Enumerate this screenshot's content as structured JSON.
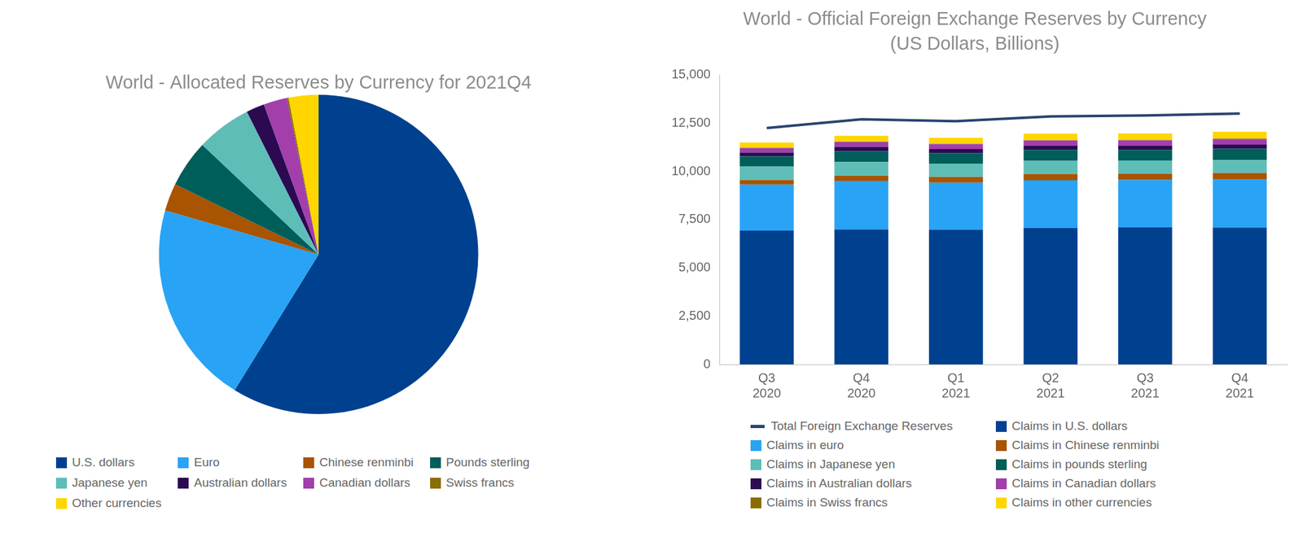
{
  "chart_data": [
    {
      "type": "pie",
      "title": "World - Allocated Reserves by Currency for 2021Q4",
      "categories": [
        "U.S. dollars",
        "Euro",
        "Chinese renminbi",
        "Pounds sterling",
        "Japanese yen",
        "Australian dollars",
        "Canadian dollars",
        "Swiss francs",
        "Other currencies"
      ],
      "values": [
        58.81,
        20.64,
        2.79,
        4.78,
        5.57,
        1.84,
        2.38,
        0.17,
        3.02
      ],
      "colors": [
        "#00418f",
        "#29a3f5",
        "#a85400",
        "#005e5a",
        "#5fbdb7",
        "#2b0a52",
        "#a23fab",
        "#8a6d00",
        "#ffd600"
      ],
      "legend": "bottom"
    },
    {
      "type": "bar",
      "title": "World - Official Foreign Exchange Reserves by Currency",
      "subtitle": "(US Dollars, Billions)",
      "categories": [
        "Q3 2020",
        "Q4 2020",
        "Q1 2021",
        "Q2 2021",
        "Q3 2021",
        "Q4 2021"
      ],
      "stacked": true,
      "grid": false,
      "legend": "bottom",
      "ylim": [
        0,
        15000
      ],
      "yticks": [
        0,
        {
          "value": 2500,
          "label": "2,500"
        },
        {
          "value": 5000,
          "label": "5,000"
        },
        {
          "value": 7500,
          "label": "7,500"
        },
        {
          "value": 10000,
          "label": "10,000"
        },
        {
          "value": 12500,
          "label": "12,500"
        },
        {
          "value": 15000,
          "label": "15,000"
        }
      ],
      "series": [
        {
          "name": "Total Foreign Exchange Reserves",
          "type": "line",
          "line_style": "solid",
          "color": "#2a4470",
          "values": [
            12250,
            12700,
            12600,
            12850,
            12900,
            13000
          ]
        },
        {
          "name": "Claims in U.S. dollars",
          "type": "bar",
          "color": "#00418f",
          "values": [
            6930,
            6990,
            6980,
            7070,
            7100,
            7090
          ]
        },
        {
          "name": "Claims in euro",
          "type": "bar",
          "color": "#29a3f5",
          "values": [
            2390,
            2520,
            2440,
            2470,
            2460,
            2490
          ]
        },
        {
          "name": "Claims in Chinese renminbi",
          "type": "bar",
          "color": "#a85400",
          "values": [
            240,
            270,
            290,
            320,
            310,
            340
          ]
        },
        {
          "name": "Claims in Japanese yen",
          "type": "bar",
          "color": "#5fbdb7",
          "values": [
            690,
            710,
            680,
            690,
            690,
            670
          ]
        },
        {
          "name": "Claims in pounds sterling",
          "type": "bar",
          "color": "#005e5a",
          "values": [
            530,
            560,
            560,
            570,
            560,
            580
          ]
        },
        {
          "name": "Claims in Australian dollars",
          "type": "bar",
          "color": "#2b0a52",
          "values": [
            200,
            220,
            210,
            220,
            220,
            220
          ]
        },
        {
          "name": "Claims in Canadian dollars",
          "type": "bar",
          "color": "#a23fab",
          "values": [
            230,
            250,
            250,
            260,
            270,
            290
          ]
        },
        {
          "name": "Claims in Swiss francs",
          "type": "bar",
          "color": "#8a6d00",
          "values": [
            20,
            20,
            20,
            20,
            20,
            20
          ]
        },
        {
          "name": "Claims in other currencies",
          "type": "bar",
          "color": "#ffd600",
          "values": [
            270,
            300,
            310,
            340,
            340,
            360
          ]
        }
      ]
    }
  ]
}
